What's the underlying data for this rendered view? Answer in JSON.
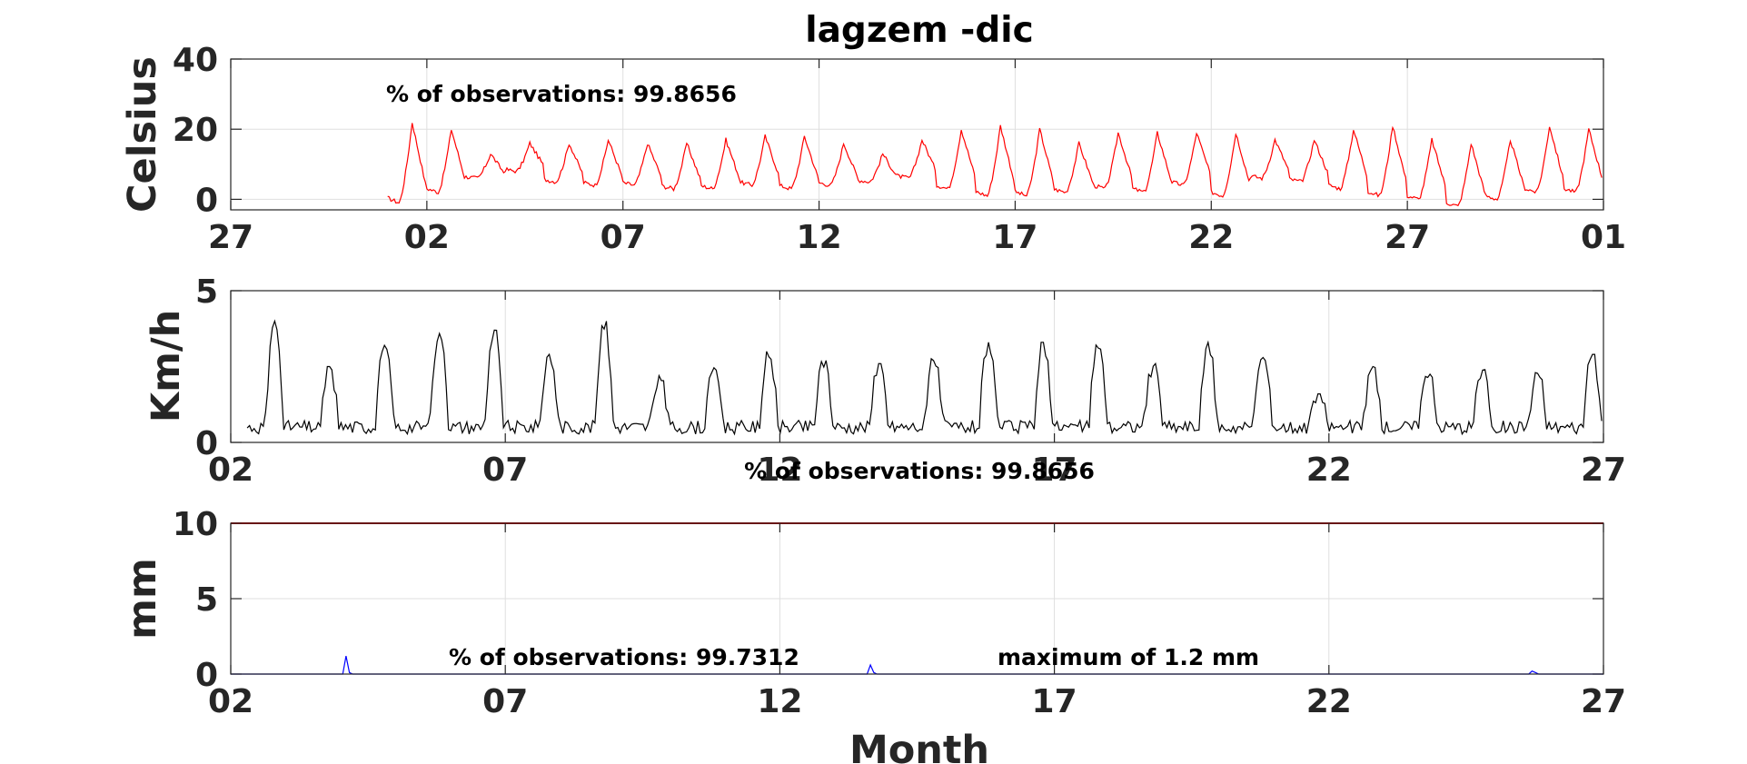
{
  "title": "lagzem -dic",
  "xlabel": "Month",
  "chart_data": [
    {
      "type": "line",
      "ylabel": "Celsius",
      "ylim": [
        -3,
        40
      ],
      "yticks": [
        "0",
        "20",
        "40"
      ],
      "ytick_values": [
        0,
        20,
        40
      ],
      "xlim": [
        -5,
        30
      ],
      "xticks": [
        "27",
        "02",
        "07",
        "12",
        "17",
        "22",
        "27",
        "01"
      ],
      "xtick_values": [
        -5,
        0,
        5,
        10,
        15,
        20,
        25,
        30
      ],
      "grid": true,
      "annotations": [
        "% of observations: 99.8656"
      ],
      "series": [
        {
          "color": "#ff0000",
          "description": "hourly temperature, daily cycle; min/max per day",
          "x_start": -1,
          "day_min": [
            -1,
            2,
            6,
            8,
            5,
            4,
            4,
            3,
            3,
            4,
            3,
            4,
            5,
            6,
            3,
            1,
            1,
            2,
            3,
            2,
            4,
            1,
            6,
            5,
            3,
            1,
            0,
            -2,
            0,
            2,
            2
          ],
          "day_max": [
            22,
            20,
            13,
            16,
            16,
            17,
            16,
            16,
            17,
            18,
            18,
            16,
            13,
            17,
            20,
            21,
            20,
            16,
            19,
            19,
            19,
            19,
            17,
            17,
            20,
            21,
            17,
            16,
            17,
            21,
            20
          ]
        }
      ]
    },
    {
      "type": "line",
      "ylabel": "Km/h",
      "ylim": [
        0,
        5
      ],
      "yticks": [
        "0",
        "5"
      ],
      "ytick_values": [
        0,
        5
      ],
      "xlim": [
        2,
        27
      ],
      "xticks": [
        "02",
        "07",
        "12",
        "17",
        "22",
        "27"
      ],
      "xtick_values": [
        2,
        7,
        12,
        17,
        22,
        27
      ],
      "grid": true,
      "annotations": [
        "% of observations: 99.8656"
      ],
      "series": [
        {
          "color": "#000000",
          "description": "hourly wind speed, daily peak values",
          "day_peaks": [
            4.0,
            2.5,
            3.2,
            3.8,
            3.7,
            2.9,
            4.0,
            2.2,
            2.6,
            3.0,
            2.7,
            2.6,
            2.8,
            3.3,
            3.3,
            3.3,
            2.6,
            3.3,
            2.8,
            1.6,
            2.5,
            2.4,
            2.4,
            2.3,
            2.9
          ]
        }
      ]
    },
    {
      "type": "line",
      "ylabel": "mm",
      "ylim": [
        0,
        10
      ],
      "yticks": [
        "0",
        "5",
        "10"
      ],
      "ytick_values": [
        0,
        5,
        10
      ],
      "xlim": [
        2,
        27
      ],
      "xticks": [
        "02",
        "07",
        "12",
        "17",
        "22",
        "27"
      ],
      "xtick_values": [
        2,
        7,
        12,
        17,
        22,
        27
      ],
      "grid": true,
      "annotations": [
        "% of observations: 99.7312",
        "maximum of 1.2 mm"
      ],
      "series": [
        {
          "color": "#0000ff",
          "description": "precipitation",
          "spikes": [
            {
              "x": 4.1,
              "y": 1.2
            },
            {
              "x": 13.65,
              "y": 0.6
            },
            {
              "x": 25.7,
              "y": 0.2
            }
          ]
        },
        {
          "color": "#cc0000",
          "description": "reference line",
          "constant": 10
        }
      ]
    }
  ],
  "colors": {
    "axis": "#262626",
    "grid": "#dfdfdf"
  }
}
